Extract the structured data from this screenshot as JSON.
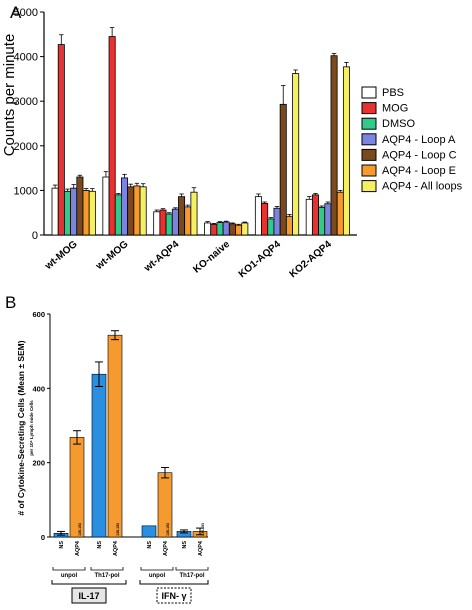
{
  "chart_data": [
    {
      "panel": "A",
      "type": "bar",
      "ylabel": "Counts per minute",
      "ylim": [
        0,
        5000
      ],
      "yticks": [
        "0",
        "1000",
        "2000",
        "3000",
        "4000",
        "5000"
      ],
      "categories": [
        "wt-MOG",
        "wt-MOG",
        "wt-AQP4",
        "KO-naive",
        "KO1-AQP4",
        "KO2-AQP4"
      ],
      "legend_position": "right",
      "series": [
        {
          "name": "PBS",
          "color": "#ffffff",
          "values": [
            1050,
            1300,
            520,
            270,
            860,
            800
          ],
          "errors": [
            70,
            120,
            40,
            30,
            60,
            60
          ]
        },
        {
          "name": "MOG",
          "color": "#e8322f",
          "values": [
            4270,
            4450,
            560,
            240,
            710,
            900
          ],
          "errors": [
            220,
            200,
            30,
            20,
            30,
            30
          ]
        },
        {
          "name": "DMSO",
          "color": "#33c98d",
          "values": [
            980,
            900,
            470,
            280,
            360,
            620
          ],
          "errors": [
            50,
            30,
            30,
            20,
            30,
            30
          ]
        },
        {
          "name": "AQP4 - Loop A",
          "color": "#7b84e0",
          "values": [
            1050,
            1280,
            580,
            290,
            600,
            700
          ],
          "errors": [
            80,
            80,
            30,
            20,
            40,
            40
          ]
        },
        {
          "name": "AQP4 - Loop C",
          "color": "#7a4a1e",
          "values": [
            1300,
            1080,
            860,
            250,
            2930,
            4020
          ],
          "errors": [
            40,
            60,
            60,
            20,
            420,
            50
          ]
        },
        {
          "name": "AQP4 - Loop E",
          "color": "#f59a2e",
          "values": [
            1000,
            1100,
            630,
            220,
            420,
            960
          ],
          "errors": [
            40,
            60,
            40,
            20,
            40,
            40
          ]
        },
        {
          "name": "AQP4 - All loops",
          "color": "#f5ef62",
          "values": [
            980,
            1080,
            960,
            270,
            3620,
            3770
          ],
          "errors": [
            60,
            70,
            100,
            20,
            80,
            100
          ]
        }
      ]
    },
    {
      "panel": "B",
      "type": "bar",
      "ylabel": "# of Cytokine-Secreting Cells (Mean ± SEM)",
      "ylabel_sub": "per 10⁶ Lymph node Cells",
      "ylim": [
        0,
        600
      ],
      "yticks": [
        "0",
        "200",
        "400",
        "600"
      ],
      "colors": {
        "NS": "#2a8fe0",
        "AQP4": "#f59a2e"
      },
      "groups": [
        {
          "cytokine": "IL-17",
          "condition": "unpol",
          "labels": [
            "NS",
            "AQP4"
          ],
          "sub": "135-153",
          "values": [
            10,
            268
          ],
          "errors": [
            5,
            18
          ]
        },
        {
          "cytokine": "IL-17",
          "condition": "Th17-pol",
          "labels": [
            "NS",
            "AQP4"
          ],
          "sub": "135-153",
          "values": [
            438,
            543
          ],
          "errors": [
            33,
            12
          ]
        },
        {
          "cytokine": "IFN- γ",
          "condition": "unpol",
          "labels": [
            "NS",
            "AQP4"
          ],
          "sub": "135-153",
          "values": [
            30,
            173
          ],
          "errors": [
            0,
            14
          ]
        },
        {
          "cytokine": "IFN- γ",
          "condition": "Th17-pol",
          "labels": [
            "NS",
            "AQP4"
          ],
          "sub": "135-153",
          "values": [
            15,
            15
          ],
          "errors": [
            4,
            9
          ]
        }
      ],
      "cytokines": [
        "IL-17",
        "IFN- γ"
      ]
    }
  ]
}
